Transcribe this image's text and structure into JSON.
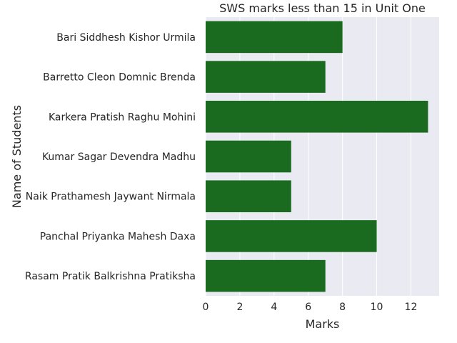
{
  "chart_data": {
    "type": "bar",
    "orientation": "horizontal",
    "title": "SWS marks less than 15 in Unit One",
    "xlabel": "Marks",
    "ylabel": "Name of Students",
    "categories": [
      "Bari Siddhesh Kishor Urmila",
      "Barretto Cleon Domnic Brenda",
      "Karkera Pratish Raghu Mohini",
      "Kumar Sagar Devendra Madhu",
      "Naik Prathamesh Jaywant Nirmala",
      "Panchal Priyanka Mahesh Daxa",
      "Rasam Pratik Balkrishna Pratiksha"
    ],
    "values": [
      8,
      7,
      13,
      5,
      5,
      10,
      7
    ],
    "xlim": [
      0,
      13.65
    ],
    "xticks": [
      0,
      2,
      4,
      6,
      8,
      10,
      12
    ],
    "bar_color": "#1a6b1f",
    "background": "#eaeaf2",
    "grid_color": "#ffffff",
    "grid": true
  }
}
